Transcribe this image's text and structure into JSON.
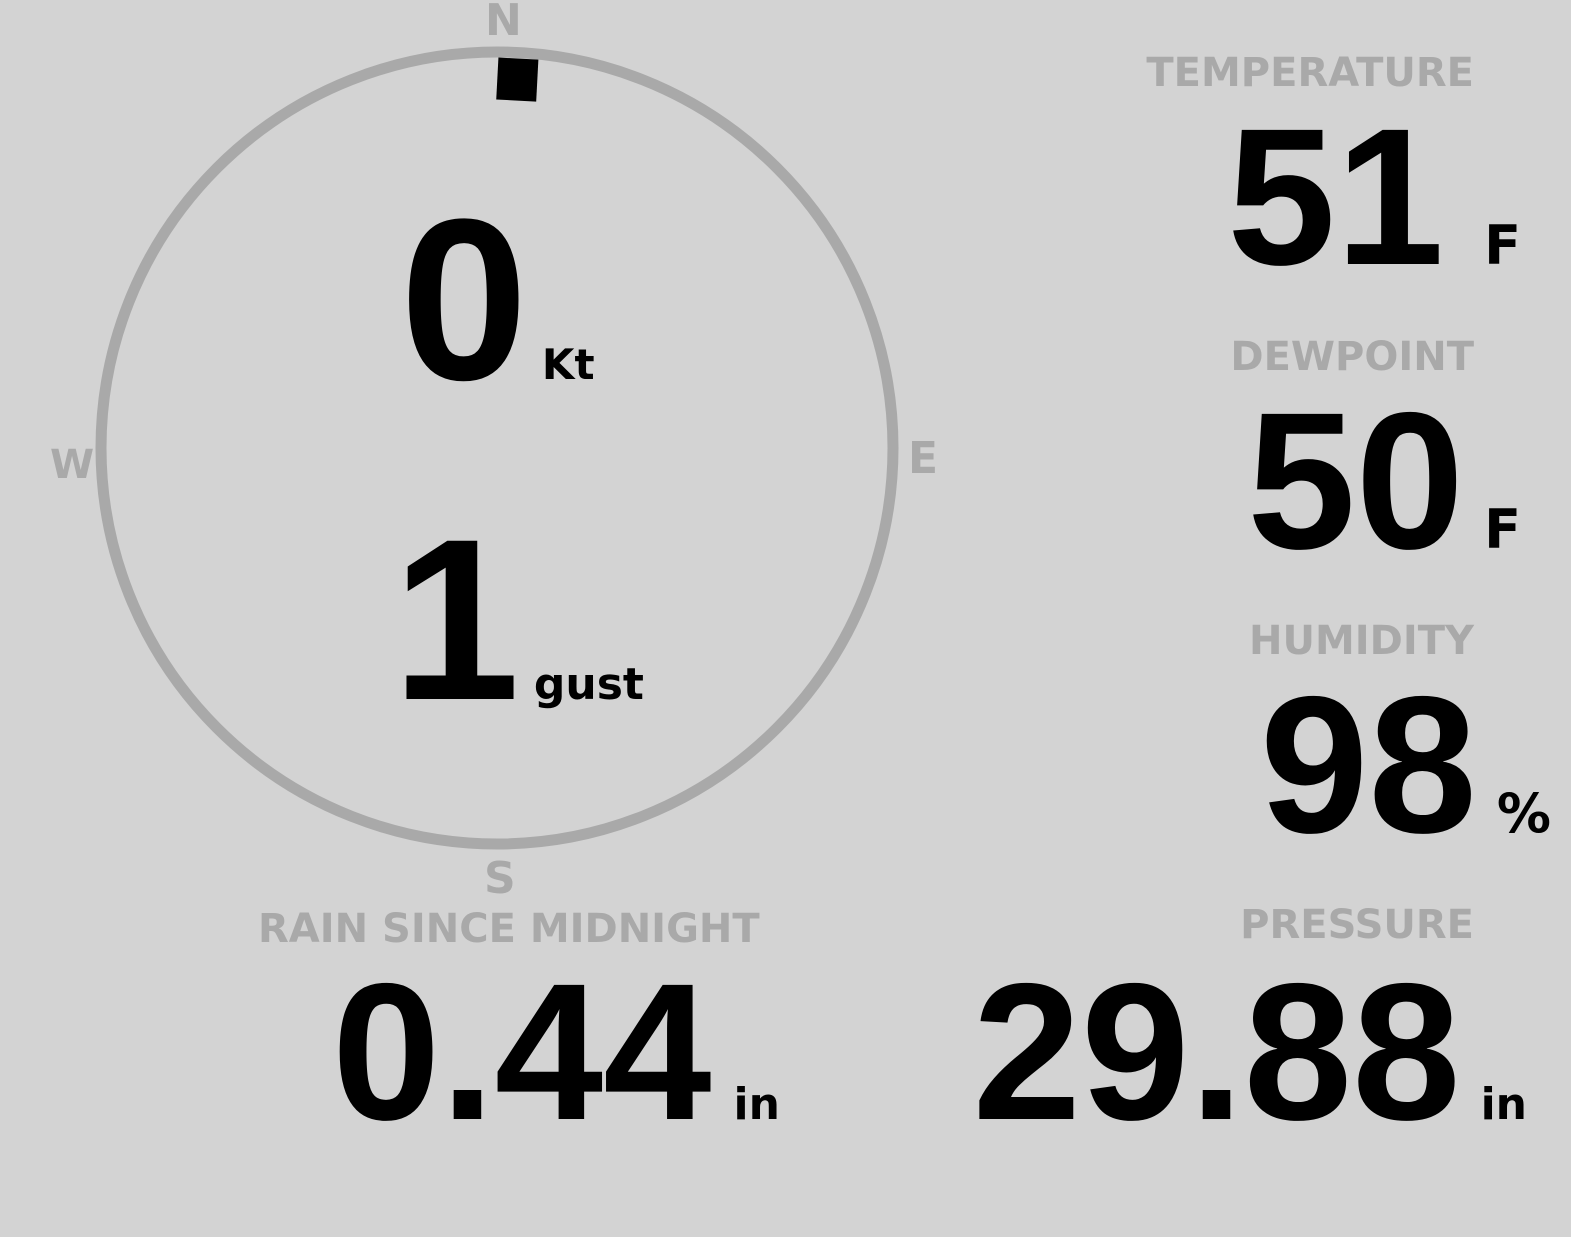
{
  "colors": {
    "background": "#d3d3d3",
    "label": "#a9a9a9",
    "value": "#000000"
  },
  "wind": {
    "compass": {
      "n": "N",
      "e": "E",
      "s": "S",
      "w": "W"
    },
    "direction_deg": 3,
    "speed": "0",
    "speed_unit": "Kt",
    "gust": "1",
    "gust_unit": "gust"
  },
  "temperature": {
    "label": "TEMPERATURE",
    "value": "51",
    "unit": "F"
  },
  "dewpoint": {
    "label": "DEWPOINT",
    "value": "50",
    "unit": "F"
  },
  "humidity": {
    "label": "HUMIDITY",
    "value": "98",
    "unit": "%"
  },
  "rain": {
    "label": "RAIN SINCE MIDNIGHT",
    "value": "0.44",
    "unit": "in"
  },
  "pressure": {
    "label": "PRESSURE",
    "value": "29.88",
    "unit": "in"
  }
}
